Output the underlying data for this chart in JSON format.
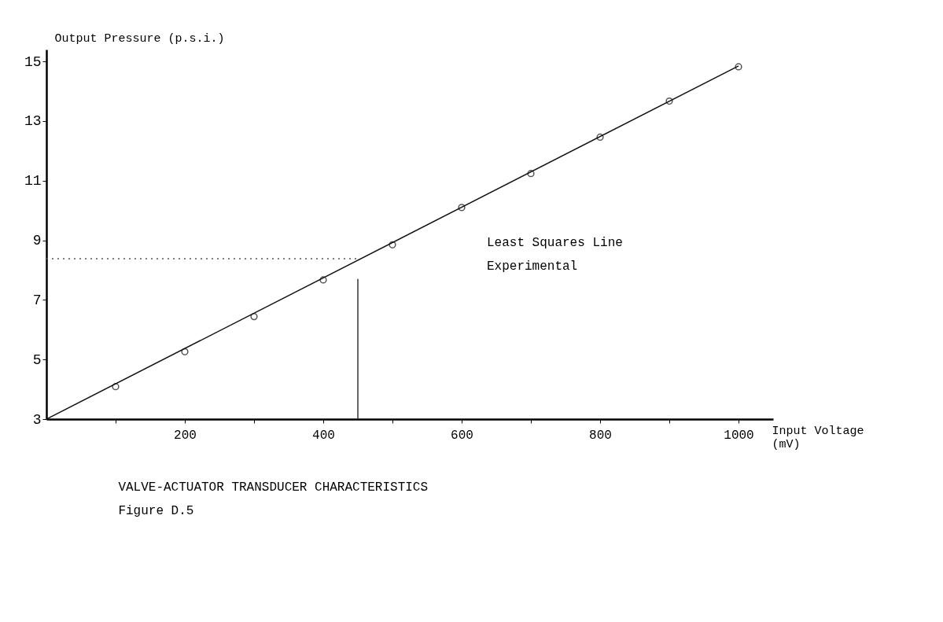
{
  "chart_data": {
    "type": "scatter",
    "title": "VALVE-ACTUATOR TRANSDUCER CHARACTERISTICS",
    "subtitle": "Figure D.5",
    "xlabel": "Input Voltage (mV)",
    "ylabel": "Output Pressure  (p.s.i.)",
    "series": [
      {
        "type": "line",
        "color": "#111111",
        "x": [
          0,
          1000
        ],
        "values": [
          3,
          14.85
        ],
        "line_style": "solid",
        "marker": "none"
      },
      {
        "color": "#111111",
        "x": [
          100,
          200,
          300,
          400,
          500,
          600,
          700,
          800,
          900,
          1000
        ],
        "values": [
          4.09,
          5.26,
          6.44,
          7.67,
          8.85,
          10.1,
          11.24,
          12.46,
          13.67,
          14.82
        ],
        "marker": "circle"
      },
      {
        "type": "line",
        "color": "#555555",
        "x": [
          0,
          450
        ],
        "values": [
          8.38,
          8.38
        ],
        "line_style": "dotted",
        "marker": "none"
      },
      {
        "type": "line",
        "color": "#333333",
        "x": [
          450,
          450
        ],
        "values": [
          3,
          7.7
        ],
        "line_style": "solid",
        "marker": "none"
      }
    ],
    "annotations": [
      "Least Squares Line",
      "Experimental"
    ],
    "xlim": [
      0,
      1050
    ],
    "ylim": [
      3,
      15.4
    ],
    "xticks": [
      {
        "value": 100,
        "label": null
      },
      200,
      {
        "value": 300,
        "label": null
      },
      400,
      {
        "value": 500,
        "label": null
      },
      600,
      {
        "value": 700,
        "label": null
      },
      800,
      {
        "value": 900,
        "label": null
      },
      1000
    ],
    "yticks": [
      3,
      5,
      7,
      9,
      11,
      13,
      15
    ],
    "grid": false
  }
}
